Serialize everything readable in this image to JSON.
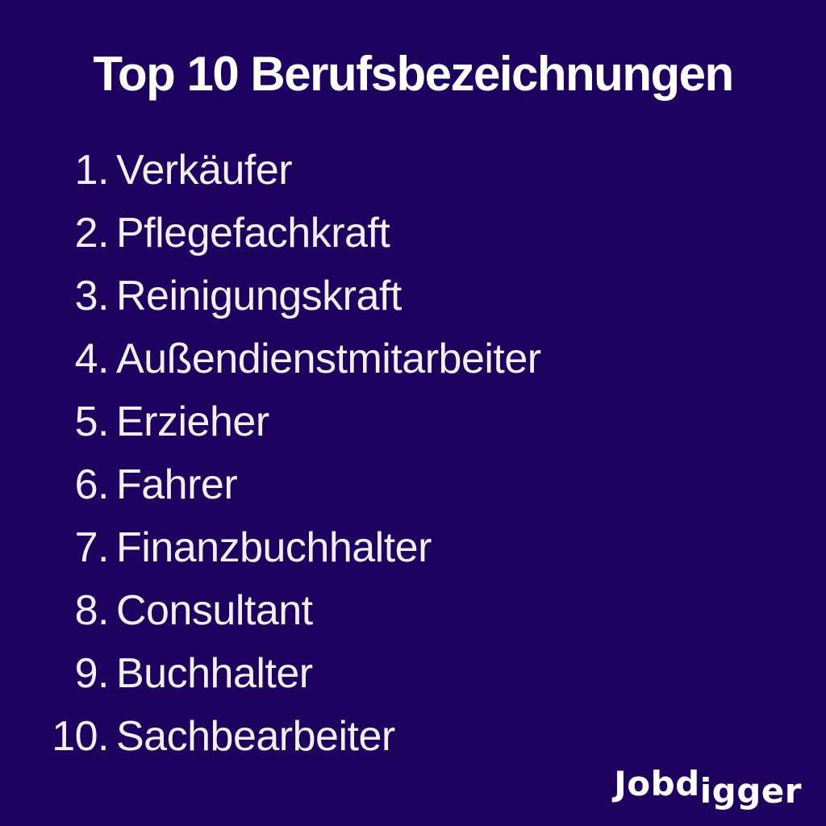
{
  "colors": {
    "background": "#1e015f",
    "title_color": "#ffffff",
    "list_color": "#f1f0f7",
    "logo_color": "#ffffff"
  },
  "title": "Top 10 Berufsbezeichnungen",
  "list": {
    "items": [
      {
        "number": "1.",
        "label": "Verkäufer"
      },
      {
        "number": "2.",
        "label": "Pflegefachkraft"
      },
      {
        "number": "3.",
        "label": "Reinigungskraft"
      },
      {
        "number": "4.",
        "label": "Außendienstmitarbeiter"
      },
      {
        "number": "5.",
        "label": "Erzieher"
      },
      {
        "number": "6.",
        "label": "Fahrer"
      },
      {
        "number": "7.",
        "label": "Finanzbuchhalter"
      },
      {
        "number": "8.",
        "label": "Consultant"
      },
      {
        "number": "9.",
        "label": "Buchhalter"
      },
      {
        "number": "10.",
        "label": "Sachbearbeiter"
      }
    ]
  },
  "logo": {
    "text_primary": "Jobd",
    "text_secondary": "igger"
  }
}
